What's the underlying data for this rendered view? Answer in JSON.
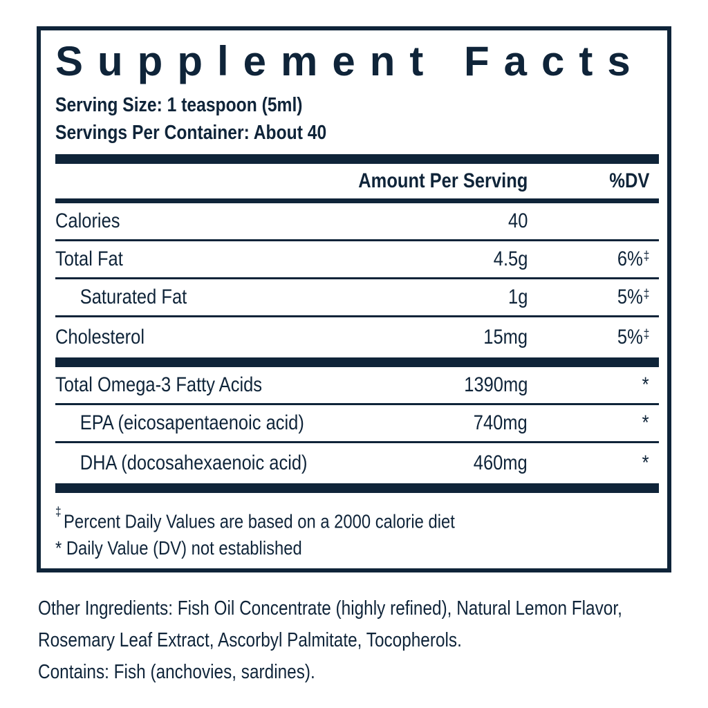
{
  "label": {
    "title": "Supplement Facts",
    "serving_size": "Serving Size: 1 teaspoon (5ml)",
    "servings_per_container": "Servings Per Container: About 40",
    "header": {
      "amount": "Amount Per Serving",
      "dv": "%DV"
    },
    "rows": [
      {
        "name": "Calories",
        "amount": "40",
        "dv": "",
        "dv_sup": ""
      },
      {
        "name": "Total Fat",
        "amount": "4.5g",
        "dv": "6%",
        "dv_sup": "‡"
      },
      {
        "name": "Saturated Fat",
        "amount": "1g",
        "dv": "5%",
        "dv_sup": "‡"
      },
      {
        "name": "Cholesterol",
        "amount": "15mg",
        "dv": "5%",
        "dv_sup": "‡"
      },
      {
        "name": "Total Omega-3 Fatty Acids",
        "amount": "1390mg",
        "dv": "*",
        "dv_sup": ""
      },
      {
        "name": "EPA (eicosapentaenoic acid)",
        "amount": "740mg",
        "dv": "*",
        "dv_sup": ""
      },
      {
        "name": "DHA (docosahexaenoic acid)",
        "amount": "460mg",
        "dv": "*",
        "dv_sup": ""
      }
    ],
    "footnotes": {
      "daily_value_sym": "‡",
      "daily_value_text": "Percent Daily Values are based on a 2000 calorie diet",
      "not_established": "* Daily Value (DV) not established"
    }
  },
  "other_ingredients": {
    "lines": [
      "Other Ingredients: Fish Oil Concentrate (highly refined), Natural Lemon Flavor,",
      "Rosemary Leaf Extract, Ascorbyl Palmitate, Tocopherols.",
      "Contains: Fish (anchovies, sardines)."
    ]
  },
  "colors": {
    "navy": "#0f2439",
    "background": "#ffffff"
  }
}
